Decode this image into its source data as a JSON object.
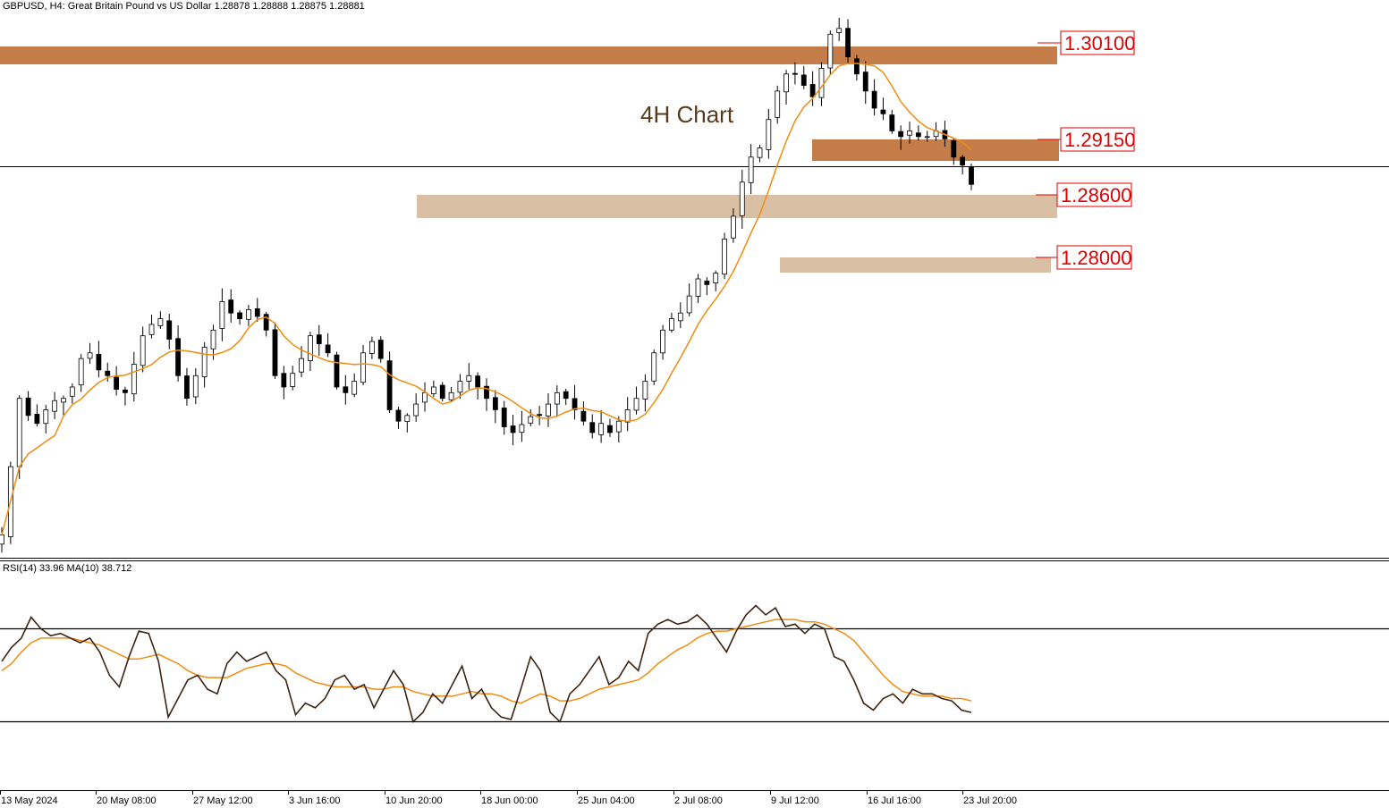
{
  "header": {
    "symbol_info": "GBPUSD, H4:  Great Britain Pound vs US Dollar  1.28878 1.28888 1.28875 1.28881"
  },
  "chart_title": "4H Chart",
  "rsi_header": "RSI(14) 33.96 MA(10) 38.712",
  "colors": {
    "candle": "#000000",
    "ma": "#f08c10",
    "rsi": "#3b2414",
    "zone_dark": "#c47c49",
    "zone_light": "#d9c0a5",
    "level_label": "#e00000"
  },
  "chart_data": [
    {
      "type": "candlestick",
      "symbol": "GBPUSD",
      "timeframe": "H4",
      "ylim": [
        1.256,
        1.305
      ],
      "x_tick_labels": [
        "13 May 2024",
        "20 May 08:00",
        "27 May 12:00",
        "3 Jun 16:00",
        "10 Jun 20:00",
        "18 Jun 00:00",
        "25 Jun 04:00",
        "2 Jul 08:00",
        "9 Jul 12:00",
        "16 Jul 16:00",
        "23 Jul 20:00"
      ],
      "close_path": [
        1.258,
        1.264,
        1.27,
        1.2685,
        1.2678,
        1.269,
        1.2698,
        1.27,
        1.271,
        1.2735,
        1.274,
        1.2725,
        1.272,
        1.2708,
        1.2705,
        1.273,
        1.2755,
        1.2765,
        1.277,
        1.2752,
        1.272,
        1.27,
        1.272,
        1.2745,
        1.276,
        1.2785,
        1.2775,
        1.277,
        1.2778,
        1.2772,
        1.276,
        1.272,
        1.271,
        1.2722,
        1.2735,
        1.2755,
        1.2748,
        1.274,
        1.271,
        1.2705,
        1.2715,
        1.274,
        1.275,
        1.2735,
        1.269,
        1.268,
        1.2685,
        1.2695,
        1.2705,
        1.271,
        1.27,
        1.2705,
        1.2715,
        1.272,
        1.271,
        1.27,
        1.269,
        1.2675,
        1.267,
        1.2677,
        1.2684,
        1.2685,
        1.2695,
        1.2705,
        1.27,
        1.269,
        1.268,
        1.267,
        1.2678,
        1.267,
        1.268,
        1.269,
        1.27,
        1.2715,
        1.274,
        1.276,
        1.277,
        1.2775,
        1.279,
        1.2805,
        1.28,
        1.281,
        1.284,
        1.286,
        1.289,
        1.2912,
        1.292,
        1.2945,
        1.297,
        1.2985,
        1.2985,
        1.2975,
        1.2965,
        1.299,
        1.302,
        1.3025,
        1.3,
        1.2985,
        1.297,
        1.2955,
        1.295,
        1.2935,
        1.293,
        1.2935,
        1.293,
        1.293,
        1.2935,
        1.2928,
        1.2912,
        1.2905,
        1.2888
      ],
      "ma_period_label": "",
      "levels": [
        {
          "label": "1.30100",
          "style": "dark"
        },
        {
          "label": "1.29150",
          "style": "dark"
        },
        {
          "label": "1.28600",
          "style": "light"
        },
        {
          "label": "1.28000",
          "style": "light"
        }
      ],
      "current_price_line": 1.28881
    },
    {
      "type": "line",
      "indicator": "RSI(14) with MA(10)",
      "rsi_value": 33.96,
      "ma_value": 38.712,
      "ylim": [
        0,
        100
      ],
      "levels": [
        70,
        30
      ],
      "rsi_path": [
        56,
        62,
        66,
        75,
        70,
        67,
        68,
        66,
        64,
        66,
        60,
        50,
        45,
        58,
        69,
        68,
        56,
        32,
        40,
        48,
        50,
        44,
        42,
        55,
        60,
        56,
        58,
        60,
        52,
        48,
        33,
        38,
        36,
        40,
        48,
        50,
        44,
        46,
        36,
        44,
        52,
        46,
        30,
        34,
        42,
        38,
        46,
        54,
        40,
        44,
        36,
        32,
        31,
        44,
        58,
        52,
        34,
        30,
        42,
        46,
        52,
        58,
        46,
        49,
        56,
        52,
        68,
        72,
        74,
        72,
        73,
        76,
        72,
        66,
        60,
        69,
        76,
        80,
        76,
        79,
        71,
        72,
        68,
        72,
        70,
        58,
        56,
        48,
        38,
        35,
        40,
        42,
        38,
        44,
        42,
        42,
        40,
        39,
        35,
        34
      ],
      "ma_path": [
        52,
        55,
        60,
        64,
        66,
        66,
        66,
        66,
        65,
        64,
        63,
        61,
        59,
        57,
        57,
        58,
        59,
        57,
        55,
        52,
        50,
        49,
        49,
        49,
        51,
        53,
        54,
        55,
        55,
        54,
        51,
        49,
        47,
        46,
        45,
        45,
        45,
        45,
        44,
        44,
        45,
        45,
        43,
        42,
        41,
        41,
        41,
        42,
        43,
        42,
        42,
        41,
        39,
        38,
        40,
        42,
        41,
        39,
        39,
        40,
        42,
        44,
        45,
        46,
        47,
        48,
        51,
        55,
        58,
        61,
        63,
        66,
        68,
        69,
        69,
        70,
        71,
        72,
        73,
        74,
        74,
        74,
        73,
        73,
        72,
        70,
        68,
        65,
        60,
        55,
        50,
        46,
        43,
        42,
        41,
        41,
        41,
        40,
        40,
        39
      ]
    }
  ]
}
